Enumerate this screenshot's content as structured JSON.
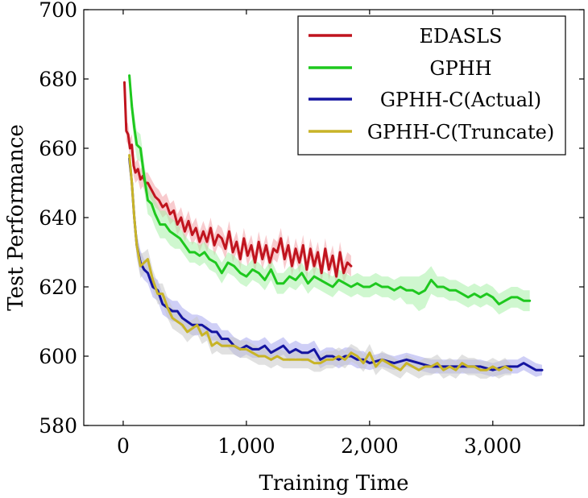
{
  "chart_data": {
    "type": "line",
    "title": "",
    "xlabel": "Training Time",
    "ylabel": "Test Performance",
    "xlim": [
      -320,
      3740
    ],
    "ylim": [
      580,
      700
    ],
    "xticks": [
      0,
      1000,
      2000,
      3000
    ],
    "xtick_labels": [
      "0",
      "1,000",
      "2,000",
      "3,000"
    ],
    "yticks": [
      580,
      600,
      620,
      640,
      660,
      680,
      700
    ],
    "ytick_labels": [
      "580",
      "600",
      "620",
      "640",
      "660",
      "680",
      "700"
    ],
    "grid": false,
    "legend_position": "top-right",
    "series": [
      {
        "name": "EDASLS",
        "color": "#c0141e",
        "band_color": "#f2a0a6",
        "x": [
          10,
          25,
          40,
          55,
          70,
          85,
          100,
          120,
          140,
          160,
          180,
          200,
          230,
          260,
          290,
          320,
          350,
          380,
          410,
          440,
          470,
          500,
          530,
          560,
          590,
          620,
          650,
          680,
          710,
          740,
          770,
          800,
          830,
          860,
          890,
          920,
          950,
          980,
          1010,
          1040,
          1070,
          1100,
          1130,
          1160,
          1190,
          1220,
          1250,
          1280,
          1310,
          1340,
          1370,
          1400,
          1430,
          1460,
          1490,
          1520,
          1550,
          1580,
          1610,
          1640,
          1670,
          1700,
          1730,
          1760,
          1790,
          1820,
          1850
        ],
        "y": [
          679,
          665,
          664,
          660,
          661,
          655,
          653,
          654,
          651,
          652,
          650,
          650,
          648,
          646,
          645,
          643,
          644,
          641,
          642,
          638,
          640,
          636,
          639,
          635,
          637,
          633,
          636,
          633,
          637,
          632,
          635,
          634,
          631,
          636,
          630,
          633,
          628,
          634,
          629,
          632,
          627,
          633,
          628,
          632,
          627,
          631,
          630,
          634,
          628,
          632,
          626,
          631,
          627,
          632,
          625,
          631,
          626,
          630,
          624,
          631,
          625,
          629,
          623,
          630,
          624,
          627,
          626
        ],
        "band": [
          1.5,
          3,
          3,
          3,
          3,
          3,
          3,
          3,
          3,
          3,
          3,
          3,
          3,
          3,
          3,
          3,
          3,
          3,
          3,
          3,
          3,
          3,
          3,
          3,
          3,
          3,
          3,
          3,
          3,
          3,
          3,
          3,
          3,
          3,
          3,
          3,
          3,
          3,
          3,
          3,
          3,
          3,
          3,
          3,
          3,
          3,
          3,
          3,
          3,
          3,
          3,
          3,
          3,
          3,
          3,
          3,
          3,
          3,
          3,
          3,
          3,
          3,
          3,
          3,
          3,
          3,
          3
        ]
      },
      {
        "name": "GPHH",
        "color": "#1ec81e",
        "band_color": "#a8f0a8",
        "x": [
          50,
          70,
          90,
          110,
          140,
          170,
          200,
          230,
          260,
          300,
          340,
          380,
          420,
          460,
          500,
          540,
          580,
          620,
          660,
          700,
          750,
          800,
          850,
          900,
          950,
          1000,
          1050,
          1100,
          1150,
          1200,
          1250,
          1300,
          1350,
          1400,
          1450,
          1500,
          1550,
          1600,
          1650,
          1700,
          1750,
          1800,
          1850,
          1900,
          1950,
          2000,
          2050,
          2100,
          2150,
          2200,
          2250,
          2300,
          2350,
          2400,
          2450,
          2500,
          2550,
          2600,
          2650,
          2700,
          2750,
          2800,
          2850,
          2900,
          2950,
          3000,
          3050,
          3100,
          3150,
          3200,
          3250,
          3300
        ],
        "y": [
          681,
          672,
          666,
          661,
          660,
          652,
          645,
          644,
          641,
          638,
          638,
          636,
          635,
          634,
          632,
          630,
          630,
          629,
          630,
          628,
          627,
          624,
          627,
          626,
          624,
          623,
          625,
          624,
          622,
          625,
          621,
          621,
          623,
          622,
          624,
          621,
          623,
          622,
          621,
          620,
          622,
          621,
          620,
          621,
          620,
          620,
          621,
          620,
          620,
          619,
          620,
          619,
          619,
          618,
          619,
          622,
          620,
          620,
          619,
          619,
          618,
          617,
          618,
          617,
          618,
          617,
          615,
          616,
          617,
          617,
          616,
          616
        ],
        "band": [
          1.5,
          4,
          4,
          4,
          4,
          4,
          4,
          4,
          4,
          4,
          4,
          4,
          4,
          3,
          3,
          3,
          3,
          3,
          3,
          3,
          3,
          3,
          3,
          3,
          3,
          3,
          3,
          3,
          3,
          3,
          3,
          3,
          3,
          3,
          3,
          3,
          3,
          3,
          3,
          3,
          3,
          3,
          3,
          3,
          3,
          3,
          3,
          3,
          3,
          3,
          3,
          4,
          4,
          5,
          5,
          4,
          3,
          3,
          3,
          3,
          3,
          3,
          3,
          3,
          3,
          3,
          3,
          3,
          3,
          3,
          3,
          3
        ]
      },
      {
        "name": "GPHH-C(Actual)",
        "color": "#1414a0",
        "band_color": "#a8a8ee",
        "x": [
          50,
          70,
          90,
          110,
          140,
          170,
          200,
          240,
          280,
          320,
          360,
          400,
          440,
          480,
          520,
          560,
          600,
          640,
          680,
          720,
          760,
          800,
          850,
          900,
          950,
          1000,
          1050,
          1100,
          1150,
          1200,
          1250,
          1300,
          1350,
          1400,
          1450,
          1500,
          1550,
          1600,
          1650,
          1700,
          1750,
          1800,
          1850,
          1900,
          1950,
          2000,
          2100,
          2200,
          2300,
          2400,
          2500,
          2600,
          2700,
          2800,
          2900,
          3000,
          3100,
          3200,
          3250,
          3300,
          3350,
          3400
        ],
        "y": [
          657,
          650,
          640,
          632,
          627,
          625,
          624,
          620,
          619,
          615,
          614,
          613,
          613,
          611,
          610,
          609,
          609,
          609,
          608,
          607,
          607,
          605,
          605,
          603,
          602,
          603,
          602,
          602,
          603,
          601,
          602,
          603,
          601,
          602,
          601,
          601,
          602,
          599,
          600,
          600,
          599,
          600,
          600,
          599,
          599,
          598,
          599,
          598,
          599,
          598,
          597,
          597,
          597,
          597,
          597,
          596,
          597,
          597,
          598,
          597,
          596,
          596
        ],
        "band": [
          1.5,
          4,
          4,
          3.5,
          3.5,
          3,
          3,
          3,
          3,
          3,
          3,
          3,
          3,
          3,
          3,
          3,
          3,
          2.5,
          2.5,
          2.5,
          2.5,
          2.5,
          2.5,
          2.5,
          2.5,
          2.5,
          2.5,
          2.5,
          2.5,
          2.5,
          2.5,
          2.5,
          2.5,
          2.5,
          2.5,
          2.5,
          2.5,
          2.5,
          2.5,
          2.5,
          2.5,
          2.5,
          2.5,
          2.5,
          2.5,
          2,
          2,
          2,
          2,
          2,
          2,
          2,
          2,
          2,
          2,
          2,
          2,
          2,
          2,
          2,
          2,
          1.5
        ]
      },
      {
        "name": "GPHH-C(Truncate)",
        "color": "#c8b428",
        "band_color": "#c8c8c8",
        "x": [
          50,
          70,
          90,
          110,
          140,
          170,
          200,
          240,
          280,
          320,
          360,
          400,
          440,
          480,
          520,
          560,
          600,
          640,
          680,
          720,
          760,
          800,
          850,
          900,
          950,
          1000,
          1050,
          1100,
          1150,
          1200,
          1250,
          1300,
          1350,
          1400,
          1450,
          1500,
          1550,
          1600,
          1650,
          1700,
          1750,
          1800,
          1850,
          1900,
          1950,
          2000,
          2050,
          2100,
          2150,
          2200,
          2250,
          2300,
          2350,
          2400,
          2450,
          2500,
          2550,
          2600,
          2650,
          2700,
          2750,
          2800,
          2850,
          2900,
          2950,
          3000,
          3050,
          3100,
          3150
        ],
        "y": [
          658,
          650,
          640,
          632,
          626,
          627,
          628,
          622,
          618,
          618,
          614,
          611,
          610,
          609,
          607,
          608,
          609,
          606,
          607,
          603,
          604,
          603,
          603,
          603,
          602,
          602,
          601,
          600,
          600,
          599,
          600,
          599,
          599,
          599,
          599,
          599,
          598,
          598,
          599,
          599,
          600,
          599,
          601,
          600,
          598,
          601,
          597,
          599,
          598,
          597,
          596,
          598,
          597,
          596,
          597,
          597,
          598,
          596,
          597,
          596,
          598,
          597,
          597,
          596,
          596,
          597,
          596,
          597,
          596
        ],
        "band": [
          1.5,
          4,
          4,
          3.5,
          3.5,
          3,
          3,
          3,
          3,
          3,
          3,
          3,
          3,
          3,
          3,
          2.5,
          2.5,
          2.5,
          2.5,
          2.5,
          2.5,
          2.5,
          2.5,
          2.5,
          2.5,
          2.5,
          2.5,
          2.5,
          2.5,
          2.5,
          2.5,
          2.5,
          2.5,
          2.5,
          2.5,
          2.5,
          2.5,
          2.5,
          2.5,
          2.5,
          2.5,
          2.5,
          2.5,
          2.5,
          2.5,
          2.5,
          2.5,
          2.5,
          2.5,
          2.5,
          2.5,
          2.5,
          2.5,
          2.5,
          2.5,
          2.5,
          2.5,
          2.5,
          2.5,
          2.5,
          2.5,
          2.5,
          2.5,
          2.5,
          2.5,
          2.5,
          2.5,
          2.5,
          1.5
        ]
      }
    ]
  }
}
